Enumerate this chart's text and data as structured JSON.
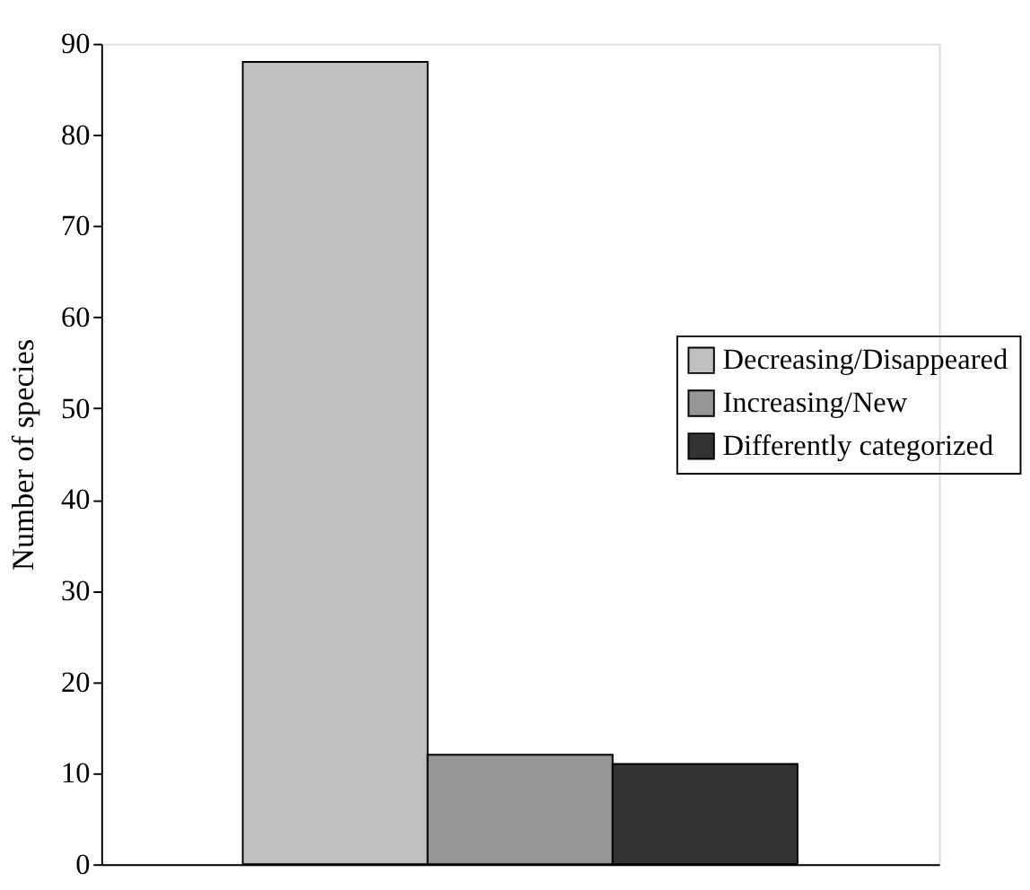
{
  "chart_data": {
    "type": "bar",
    "ylabel": "Number of species",
    "categories": [
      null
    ],
    "series": [
      {
        "name": "Decreasing/Disappeared",
        "color": "#c0c0c0",
        "values": [
          88
        ]
      },
      {
        "name": "Increasing/New",
        "color": "#969696",
        "values": [
          12
        ]
      },
      {
        "name": "Differently categorized",
        "color": "#333333",
        "values": [
          11
        ]
      }
    ],
    "ylim": [
      0,
      90
    ],
    "yticks": [
      0,
      10,
      20,
      30,
      40,
      50,
      60,
      70,
      80,
      90
    ],
    "grid": false,
    "legend": "right",
    "tick_labels": "y"
  }
}
